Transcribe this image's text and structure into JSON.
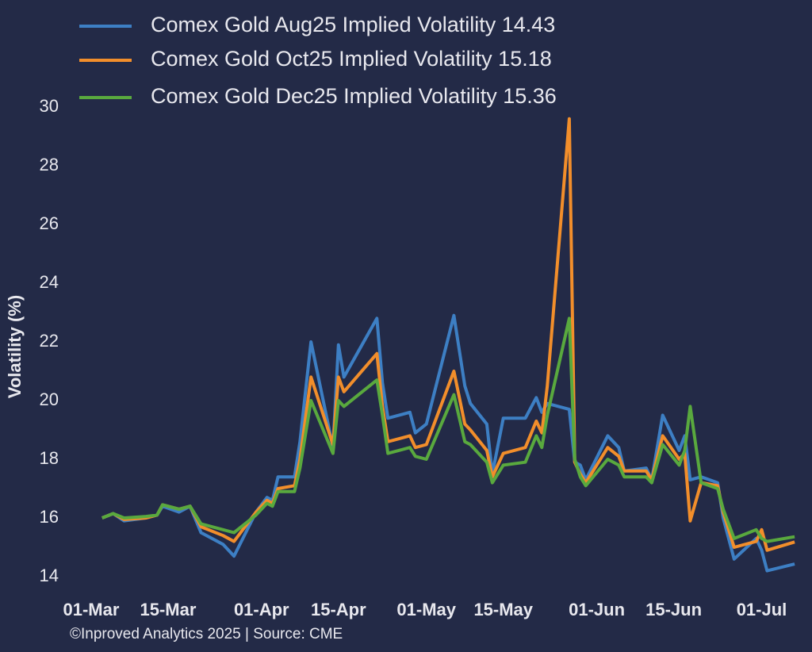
{
  "chart_data": {
    "type": "line",
    "y_label": "Volatility (%)",
    "footer": "©Inproved Analytics 2025 | Source: CME",
    "x": [
      "03-Mar",
      "05-Mar",
      "07-Mar",
      "11-Mar",
      "13-Mar",
      "14-Mar",
      "17-Mar",
      "19-Mar",
      "21-Mar",
      "25-Mar",
      "27-Mar",
      "31-Mar",
      "02-Apr",
      "03-Apr",
      "04-Apr",
      "07-Apr",
      "08-Apr",
      "10-Apr",
      "14-Apr",
      "15-Apr",
      "16-Apr",
      "22-Apr",
      "23-Apr",
      "24-Apr",
      "28-Apr",
      "29-Apr",
      "01-May",
      "06-May",
      "08-May",
      "09-May",
      "12-May",
      "13-May",
      "15-May",
      "19-May",
      "21-May",
      "22-May",
      "23-May",
      "27-May",
      "28-May",
      "29-May",
      "30-May",
      "03-Jun",
      "05-Jun",
      "06-Jun",
      "10-Jun",
      "11-Jun",
      "13-Jun",
      "16-Jun",
      "17-Jun",
      "18-Jun",
      "20-Jun",
      "23-Jun",
      "24-Jun",
      "26-Jun",
      "30-Jun",
      "01-Jul",
      "02-Jul",
      "07-Jul"
    ],
    "series": [
      {
        "name": "Comex Gold Aug25 Implied Volatility 14.43",
        "color": "#3d7fc4",
        "values": [
          16.0,
          16.15,
          15.9,
          16.0,
          16.1,
          16.4,
          16.2,
          16.4,
          15.5,
          15.1,
          14.7,
          16.2,
          16.7,
          16.6,
          17.4,
          17.4,
          18.6,
          22.0,
          18.4,
          21.9,
          20.8,
          22.8,
          20.6,
          19.4,
          19.6,
          18.9,
          19.2,
          22.9,
          20.5,
          19.9,
          19.2,
          17.5,
          19.4,
          19.4,
          20.1,
          19.6,
          19.9,
          19.7,
          17.9,
          17.8,
          17.3,
          18.8,
          18.4,
          17.6,
          17.7,
          17.3,
          19.5,
          18.3,
          18.8,
          17.3,
          17.4,
          17.2,
          16.0,
          14.6,
          15.3,
          14.9,
          14.2,
          14.43
        ]
      },
      {
        "name": "Comex Gold Oct25 Implied Volatility 15.18",
        "color": "#f28e2b",
        "values": [
          16.0,
          16.15,
          15.95,
          16.0,
          16.1,
          16.45,
          16.3,
          16.4,
          15.7,
          15.4,
          15.2,
          16.2,
          16.6,
          16.5,
          17.0,
          17.1,
          18.0,
          20.8,
          18.5,
          20.8,
          20.3,
          21.6,
          19.8,
          18.6,
          18.8,
          18.4,
          18.5,
          21.0,
          19.2,
          19.0,
          18.3,
          17.4,
          18.2,
          18.4,
          19.3,
          18.9,
          20.5,
          29.6,
          17.9,
          17.5,
          17.2,
          18.4,
          18.1,
          17.6,
          17.6,
          17.3,
          18.8,
          18.0,
          18.2,
          15.9,
          17.2,
          17.1,
          16.2,
          15.0,
          15.2,
          15.6,
          14.9,
          15.18
        ]
      },
      {
        "name": "Comex Gold Dec25 Implied Volatility 15.36",
        "color": "#59a93e",
        "values": [
          16.0,
          16.15,
          16.0,
          16.05,
          16.1,
          16.45,
          16.3,
          16.4,
          15.8,
          15.6,
          15.5,
          16.1,
          16.5,
          16.4,
          16.9,
          16.9,
          17.7,
          20.0,
          18.2,
          20.0,
          19.8,
          20.7,
          19.5,
          18.2,
          18.4,
          18.1,
          18.0,
          20.2,
          18.6,
          18.5,
          17.9,
          17.2,
          17.8,
          17.9,
          18.8,
          18.4,
          19.5,
          22.8,
          18.0,
          17.4,
          17.1,
          18.0,
          17.8,
          17.4,
          17.4,
          17.2,
          18.5,
          17.8,
          18.3,
          19.8,
          17.2,
          17.0,
          16.3,
          15.3,
          15.6,
          15.3,
          15.2,
          15.36
        ]
      }
    ],
    "xlim": [
      "28-Feb",
      "08-Jul"
    ],
    "xticks": [
      "01-Mar",
      "15-Mar",
      "01-Apr",
      "15-Apr",
      "01-May",
      "15-May",
      "01-Jun",
      "15-Jun",
      "01-Jul"
    ],
    "ylim": [
      13.5,
      30.5
    ],
    "yticks": [
      14,
      16,
      18,
      20,
      22,
      24,
      26,
      28,
      30
    ],
    "grid": false
  }
}
